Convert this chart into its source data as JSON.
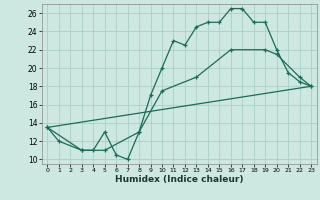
{
  "xlabel": "Humidex (Indice chaleur)",
  "background_color": "#cce8e0",
  "grid_color": "#aacfc8",
  "line_color": "#1a6b5a",
  "xlim": [
    -0.5,
    23.5
  ],
  "ylim": [
    9.5,
    27.0
  ],
  "yticks": [
    10,
    12,
    14,
    16,
    18,
    20,
    22,
    24,
    26
  ],
  "xticks": [
    0,
    1,
    2,
    3,
    4,
    5,
    6,
    7,
    8,
    9,
    10,
    11,
    12,
    13,
    14,
    15,
    16,
    17,
    18,
    19,
    20,
    21,
    22,
    23
  ],
  "line1_x": [
    0,
    1,
    3,
    4,
    5,
    6,
    7,
    8,
    9,
    10,
    11,
    12,
    13,
    14,
    15,
    16,
    17,
    18,
    19,
    20,
    21,
    22,
    23
  ],
  "line1_y": [
    13.5,
    12,
    11,
    11,
    13,
    10.5,
    10,
    13,
    17,
    20,
    23,
    22.5,
    24.5,
    25,
    25,
    26.5,
    26.5,
    25,
    25,
    22,
    19.5,
    18.5,
    18
  ],
  "line2_x": [
    0,
    3,
    5,
    8,
    10,
    13,
    16,
    19,
    20,
    22,
    23
  ],
  "line2_y": [
    13.5,
    11,
    11,
    13,
    17.5,
    19,
    22,
    22,
    21.5,
    19,
    18
  ],
  "line3_x": [
    0,
    23
  ],
  "line3_y": [
    13.5,
    18
  ]
}
